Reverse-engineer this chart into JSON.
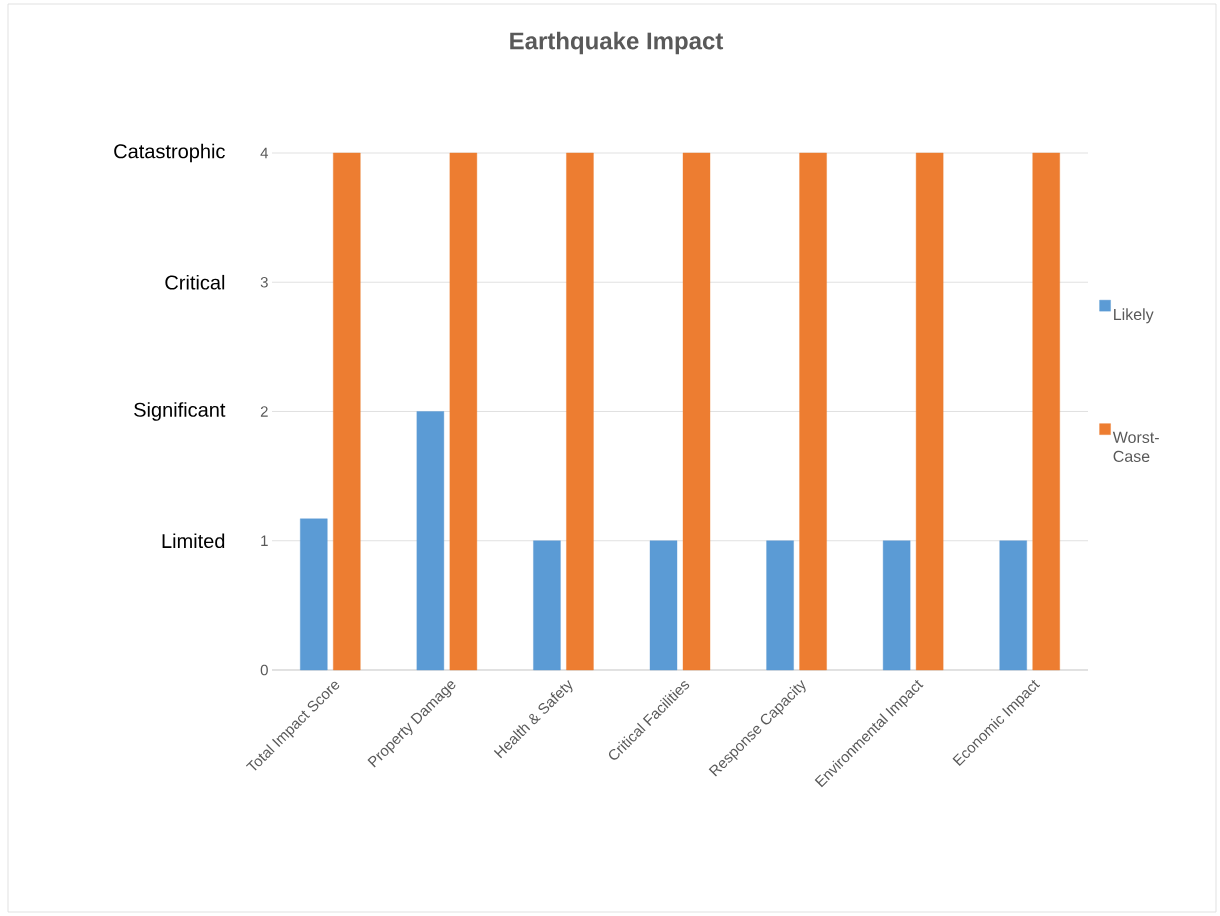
{
  "chart_data": {
    "type": "bar",
    "title": "Earthquake Impact",
    "categories": [
      "Total Impact Score",
      "Property Damage",
      "Health & Safety",
      "Critical Facilities",
      "Response Capacity",
      "Environmental Impact",
      "Economic Impact"
    ],
    "series": [
      {
        "name": "Likely",
        "color": "#5b9bd5",
        "values": [
          1.17,
          2,
          1,
          1,
          1,
          1,
          1
        ]
      },
      {
        "name": "Worst-Case",
        "color": "#ed7d31",
        "values": [
          4,
          4,
          4,
          4,
          4,
          4,
          4
        ]
      }
    ],
    "ylim": [
      0,
      4
    ],
    "yticks": [
      0,
      1,
      2,
      3,
      4
    ],
    "grid": "y",
    "legend": "right",
    "annotations": [
      "Limited",
      "Significant",
      "Critical",
      "Catastrophic"
    ]
  }
}
